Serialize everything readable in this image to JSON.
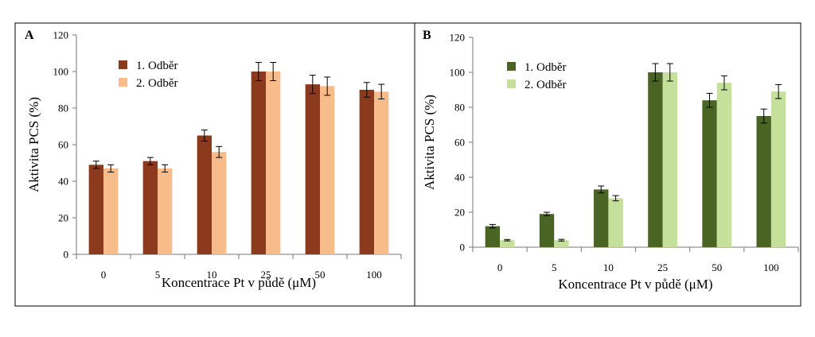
{
  "chart_data": [
    {
      "type": "bar",
      "panel_label": "A",
      "title": "",
      "categories": [
        "0",
        "5",
        "10",
        "25",
        "50",
        "100"
      ],
      "series": [
        {
          "name": "1. Odběr",
          "color": "#8B3A1E",
          "values": [
            49,
            51,
            65,
            100,
            93,
            90
          ],
          "errors": [
            2,
            2,
            3,
            5,
            5,
            4
          ]
        },
        {
          "name": "2. Odběr",
          "color": "#F8BC8A",
          "values": [
            47,
            47,
            56,
            100,
            92,
            89
          ],
          "errors": [
            2,
            2,
            3,
            5,
            5,
            4
          ]
        }
      ],
      "xlabel": "Koncentrace Pt v půdě (μM)",
      "ylabel": "Aktivita PCS (%)",
      "ylim": [
        0,
        120
      ],
      "yticks": [
        "0",
        "20",
        "40",
        "60",
        "80",
        "100",
        "120"
      ],
      "grid": false,
      "legend_position": "top-left"
    },
    {
      "type": "bar",
      "panel_label": "B",
      "title": "",
      "categories": [
        "0",
        "5",
        "10",
        "25",
        "50",
        "100"
      ],
      "series": [
        {
          "name": "1. Odběr",
          "color": "#4A6424",
          "values": [
            12,
            19,
            33,
            100,
            84,
            75
          ],
          "errors": [
            1,
            1,
            2,
            5,
            4,
            4
          ]
        },
        {
          "name": "2. Odběr",
          "color": "#C4E09A",
          "values": [
            4,
            4,
            28,
            100,
            94,
            89
          ],
          "errors": [
            0.4,
            0.5,
            1.5,
            5,
            4,
            4
          ]
        }
      ],
      "xlabel": "Koncentrace Pt v půdě (μM)",
      "ylabel": "Aktivita PCS (%)",
      "ylim": [
        0,
        120
      ],
      "yticks": [
        "0",
        "20",
        "40",
        "60",
        "80",
        "100",
        "120"
      ],
      "grid": false,
      "legend_position": "top-left"
    }
  ]
}
